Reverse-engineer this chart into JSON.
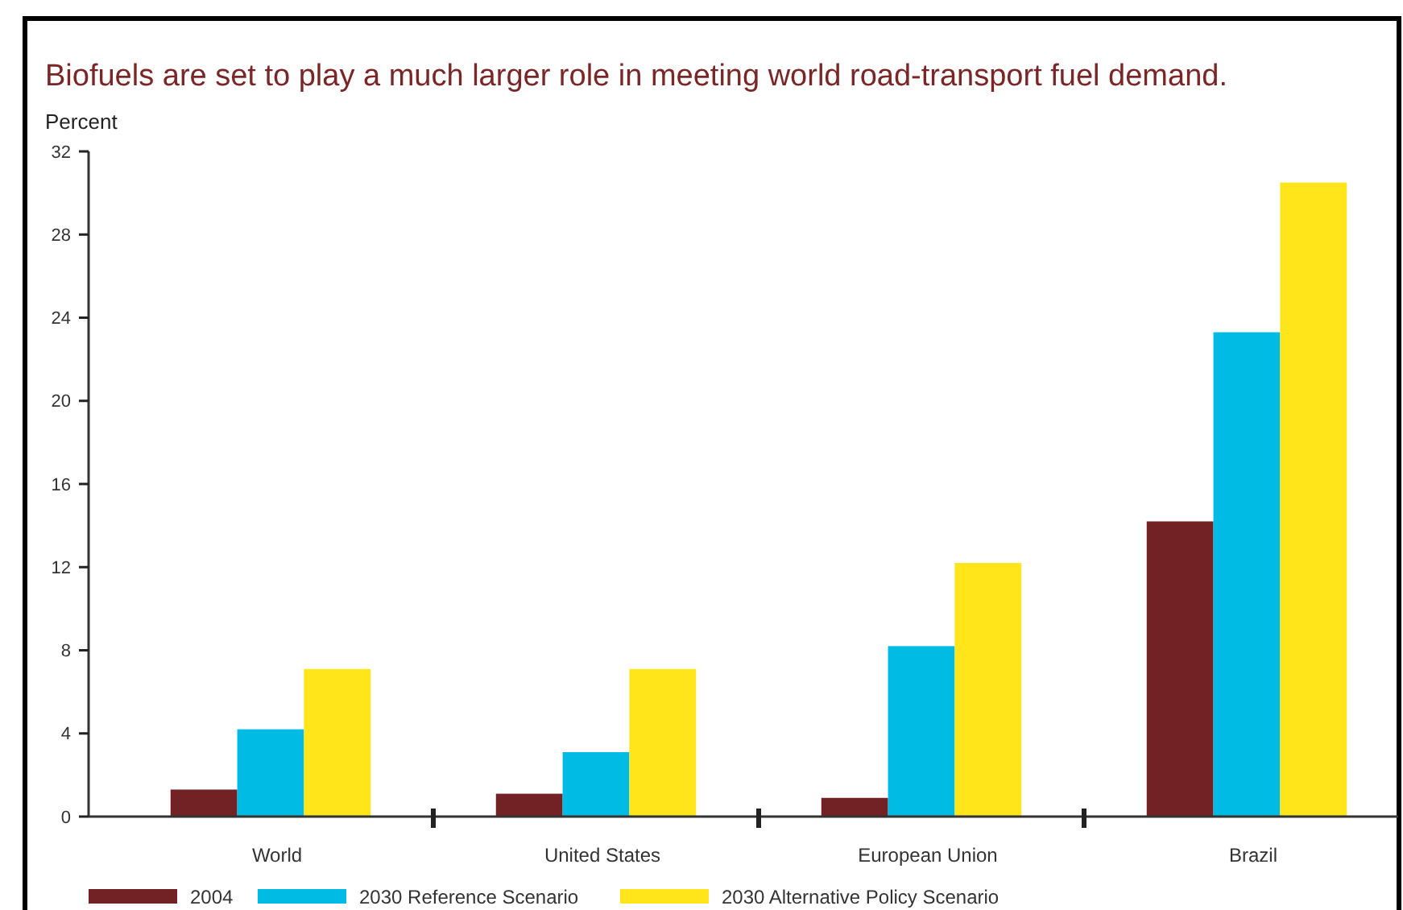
{
  "chart_data": {
    "type": "bar",
    "title": "Biofuels are set to play a much larger role in meeting world road-transport fuel demand.",
    "ylabel": "Percent",
    "categories": [
      "World",
      "United States",
      "European Union",
      "Brazil"
    ],
    "series": [
      {
        "name": "2004",
        "color": "#722125",
        "values": [
          1.3,
          1.1,
          0.9,
          14.2
        ]
      },
      {
        "name": "2030 Reference Scenario",
        "color": "#00bce4",
        "values": [
          4.2,
          3.1,
          8.2,
          23.3
        ]
      },
      {
        "name": "2030 Alternative Policy Scenario",
        "color": "#ffe51a",
        "values": [
          7.1,
          7.1,
          12.2,
          30.5
        ]
      }
    ],
    "ylim": [
      0,
      32
    ],
    "yticks": [
      0,
      4,
      8,
      12,
      16,
      20,
      24,
      28,
      32
    ],
    "legend": "bottom"
  }
}
